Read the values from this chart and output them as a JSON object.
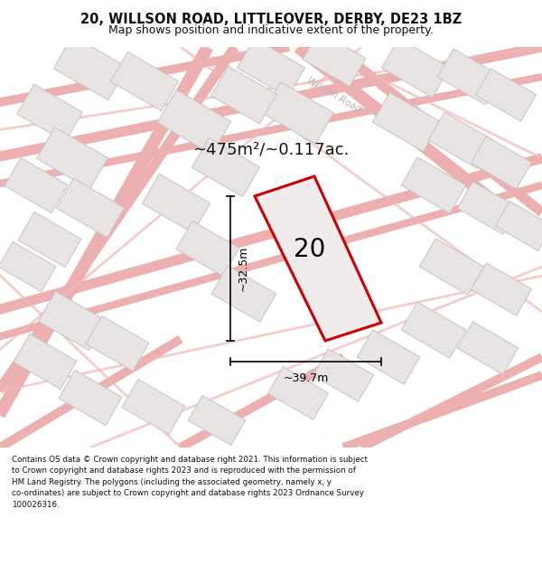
{
  "title_line1": "20, WILLSON ROAD, LITTLEOVER, DERBY, DE23 1BZ",
  "title_line2": "Map shows position and indicative extent of the property.",
  "footer": "Contains OS data © Crown copyright and database right 2021. This information is subject\nto Crown copyright and database rights 2023 and is reproduced with the permission of\nHM Land Registry. The polygons (including the associated geometry, namely x, y\nco-ordinates) are subject to Crown copyright and database rights 2023 Ordnance Survey\n100026316.",
  "area_label": "~475m²/~0.117ac.",
  "width_label": "~39.7m",
  "height_label": "~32.5m",
  "road_label": "Willson Road",
  "property_number": "20",
  "map_bg": "#f8f6f6",
  "road_line_color": "#f0b8b8",
  "road_border_color": "#e8a0a0",
  "building_fill": "#e8e4e4",
  "building_edge": "#c8c4c4",
  "property_fill": "#f0ecec",
  "property_edge": "#cc0000",
  "dim_color": "#222222",
  "title_color": "#111111",
  "footer_color": "#111111",
  "area_color": "#111111",
  "road_label_color": "#b8b0b0"
}
